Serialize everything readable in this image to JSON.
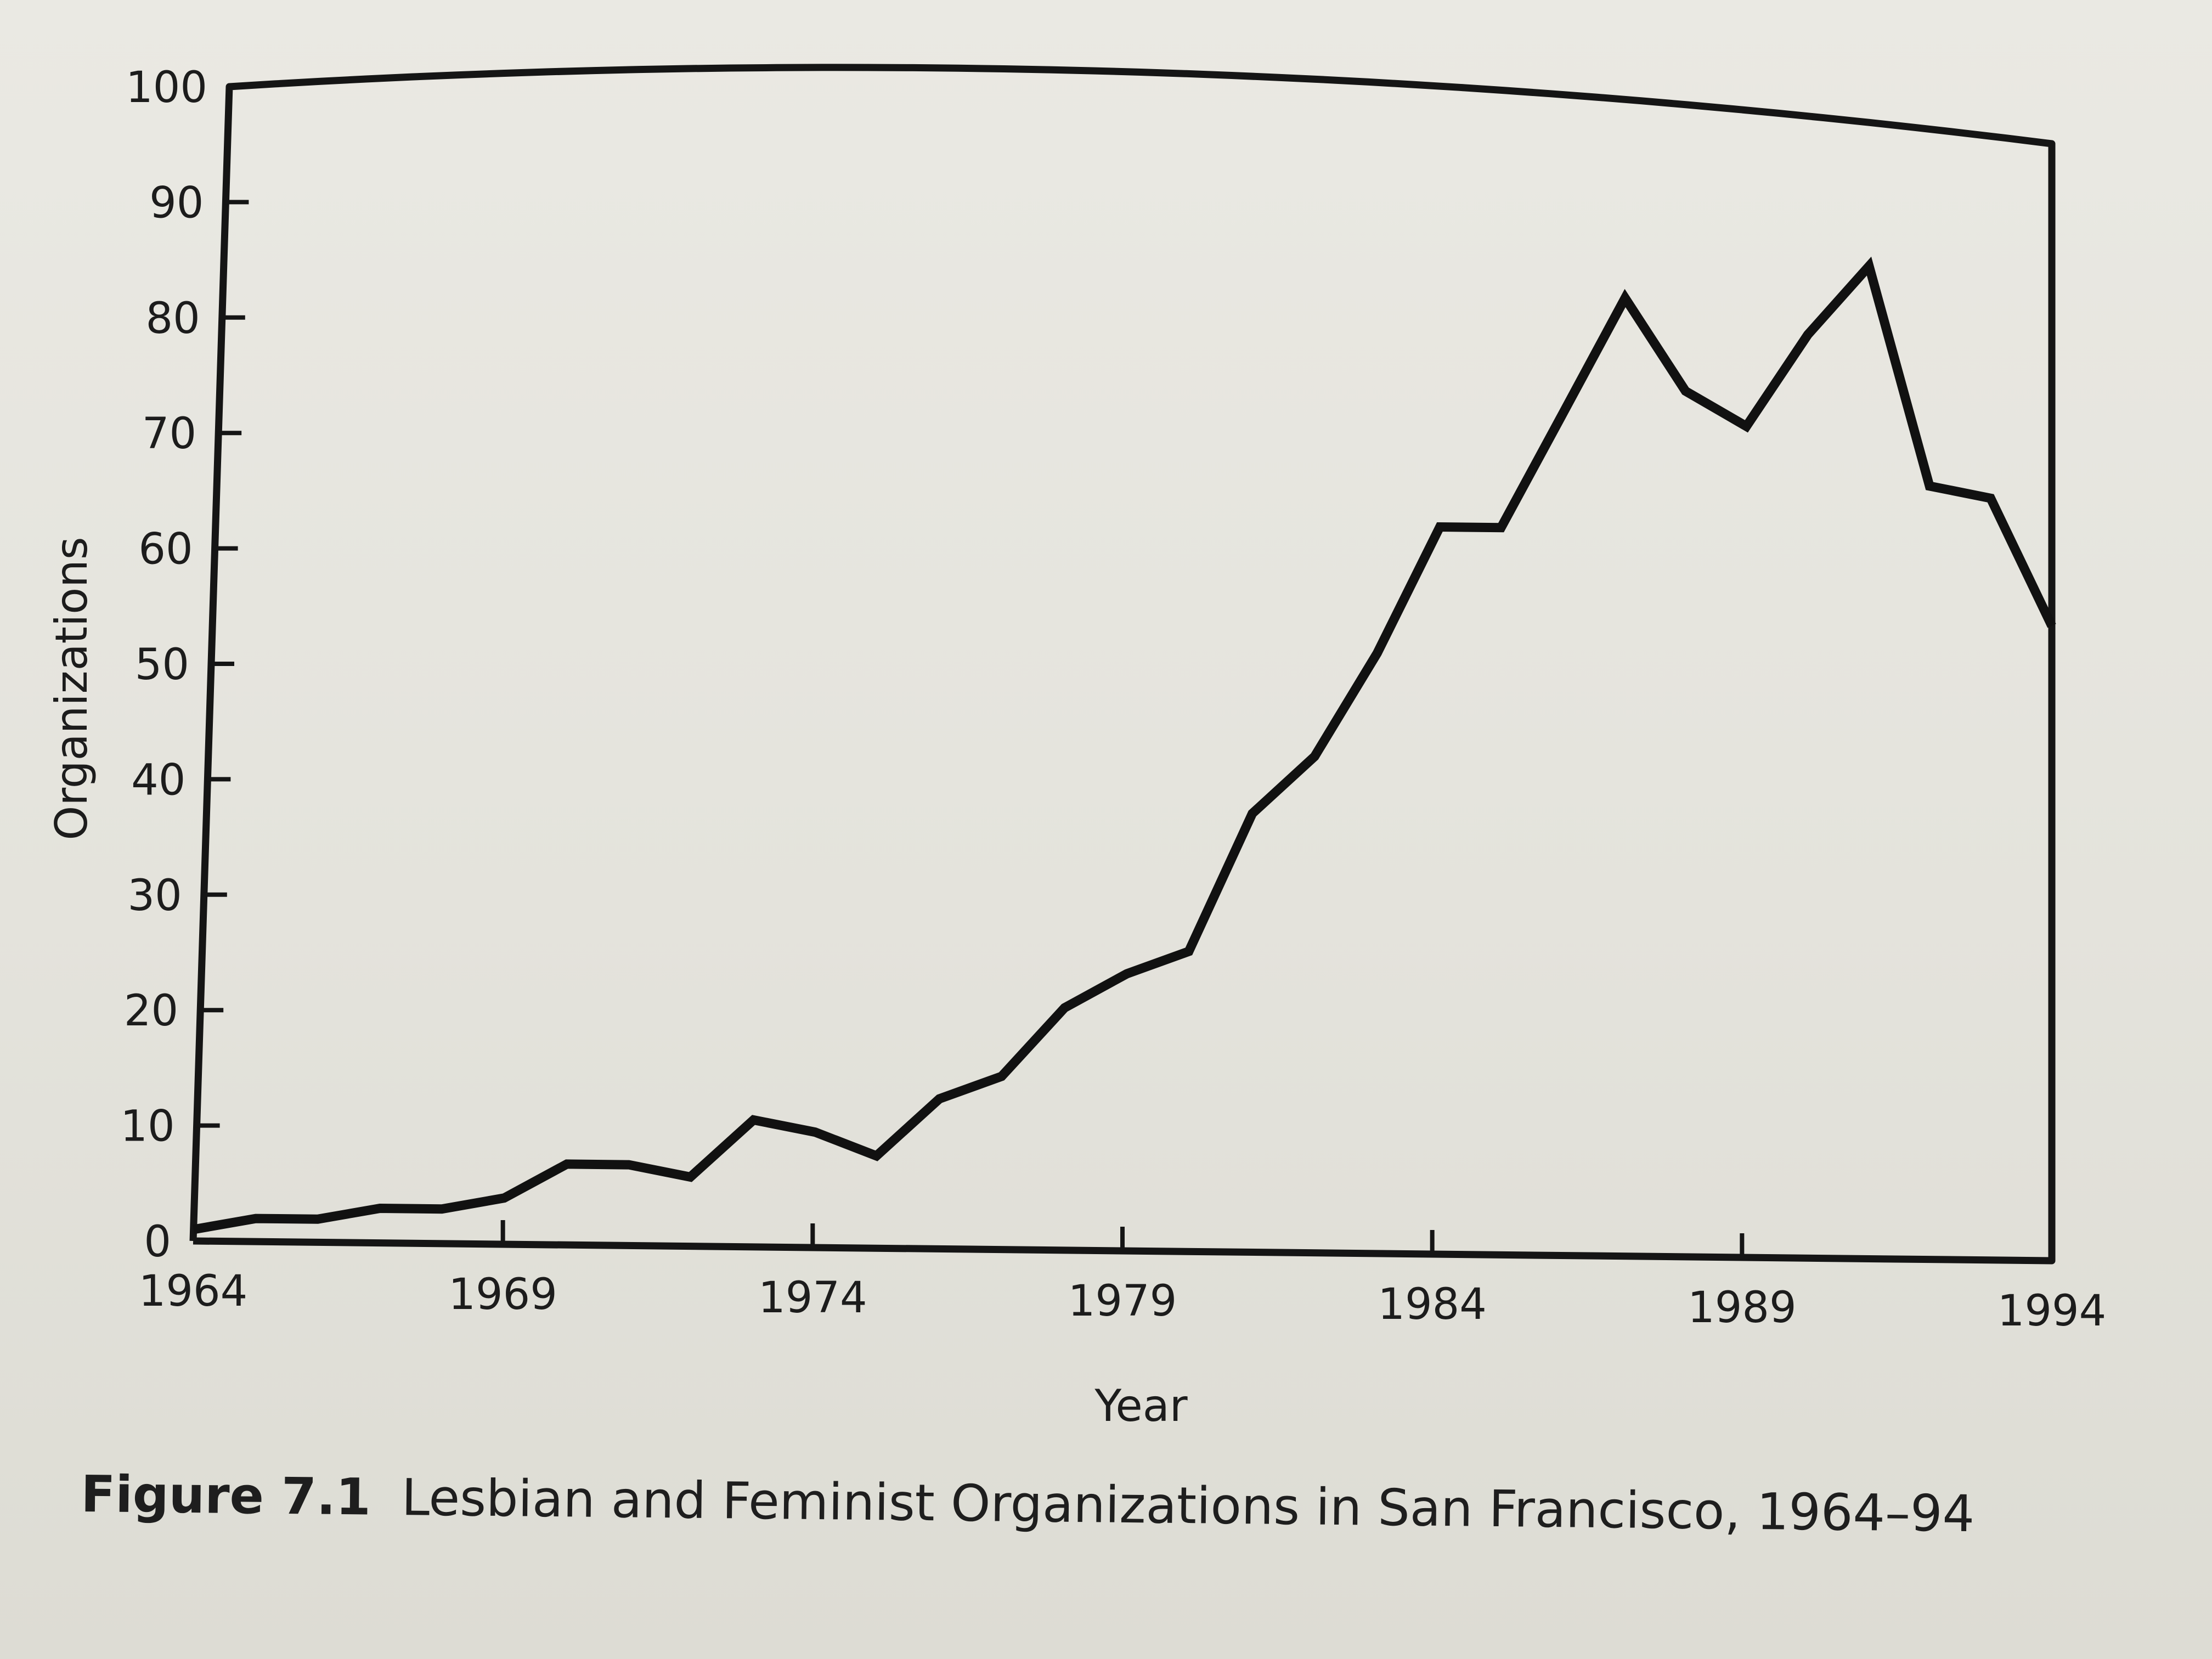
{
  "chart_data": {
    "type": "line",
    "xlabel": "Year",
    "ylabel": "Organizations",
    "xlim": [
      1964,
      1994
    ],
    "ylim": [
      0,
      100
    ],
    "x_ticks": [
      "1964",
      "1969",
      "1974",
      "1979",
      "1984",
      "1989",
      "1994"
    ],
    "y_ticks": [
      "0",
      "10",
      "20",
      "30",
      "40",
      "50",
      "60",
      "70",
      "80",
      "90",
      "100"
    ],
    "grid": false,
    "series": [
      {
        "x": [
          1964,
          1965,
          1966,
          1967,
          1968,
          1969,
          1970,
          1971,
          1972,
          1973,
          1974,
          1975,
          1976,
          1977,
          1978,
          1979,
          1980,
          1981,
          1982,
          1983,
          1984,
          1985,
          1986,
          1987,
          1988,
          1989,
          1990,
          1991,
          1992,
          1993,
          1994
        ],
        "values": [
          1,
          2,
          2,
          3,
          3,
          4,
          7,
          7,
          6,
          11,
          10,
          8,
          13,
          15,
          21,
          24,
          26,
          38,
          43,
          52,
          63,
          63,
          73,
          83,
          75,
          72,
          80,
          86,
          67,
          66,
          55
        ]
      }
    ]
  },
  "caption": {
    "label": "Figure 7.1",
    "text": "Lesbian and Feminist Organizations in San Francisco, 1964–94"
  }
}
